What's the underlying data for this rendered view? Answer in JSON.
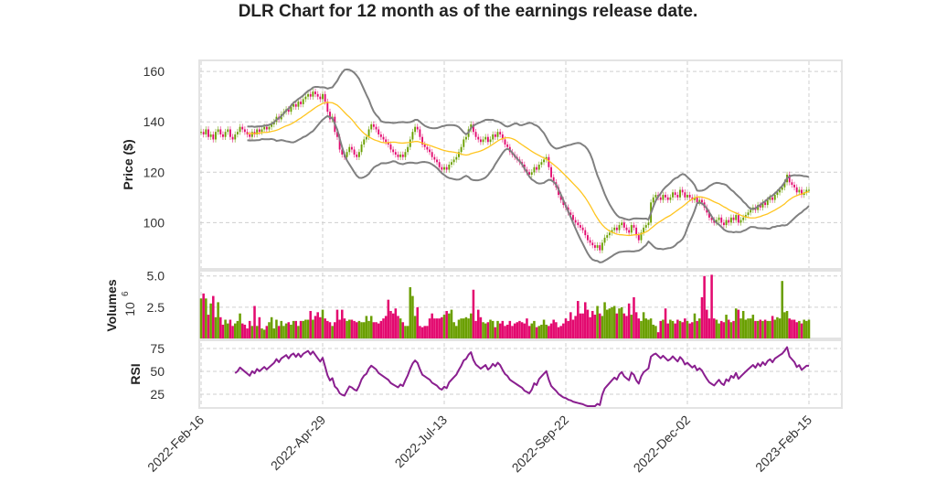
{
  "chart_data": {
    "type": "candlestick",
    "title": "DLR Chart for 12 month as of the earnings release date.",
    "x_tick_labels": [
      "2022-Feb-16",
      "2022-Apr-29",
      "2022-Jul-13",
      "2022-Sep-22",
      "2022-Dec-02",
      "2023-Feb-15"
    ],
    "x_tick_indices": [
      0,
      50,
      100,
      150,
      200,
      250
    ],
    "colors": {
      "up": "#6a9f00",
      "down": "#e3096f",
      "sma": "#ffc520",
      "bands": "#808080",
      "rsi": "#8a1f8f"
    },
    "price": {
      "ylabel": "Price ($)",
      "ylim": [
        81.6,
        164.4
      ],
      "ticks": [
        "100",
        "120",
        "140",
        "160"
      ],
      "tick_values": [
        100,
        120,
        140,
        160
      ],
      "bollinger": {
        "period": 20,
        "std": 2
      },
      "close": [
        136,
        135,
        137,
        134,
        135,
        133,
        136,
        137,
        135,
        134,
        136,
        137,
        134,
        133,
        135,
        136,
        138,
        137,
        136,
        135,
        134,
        136,
        135,
        137,
        136,
        137,
        138,
        137,
        138,
        139,
        140,
        142,
        141,
        143,
        144,
        145,
        144,
        146,
        147,
        146,
        148,
        147,
        149,
        150,
        151,
        150,
        152,
        151,
        150,
        149,
        151,
        148,
        144,
        141,
        142,
        136,
        134,
        129,
        127,
        126,
        128,
        130,
        129,
        127,
        126,
        128,
        131,
        133,
        134,
        137,
        139,
        138,
        137,
        135,
        134,
        133,
        132,
        131,
        129,
        128,
        127,
        126,
        127,
        126,
        128,
        130,
        133,
        136,
        138,
        137,
        134,
        131,
        130,
        129,
        128,
        126,
        125,
        124,
        122,
        121,
        122,
        121,
        123,
        124,
        125,
        126,
        128,
        130,
        133,
        134,
        137,
        139,
        136,
        134,
        133,
        132,
        133,
        134,
        132,
        133,
        135,
        134,
        136,
        135,
        133,
        131,
        130,
        128,
        127,
        126,
        125,
        124,
        123,
        121,
        120,
        119,
        120,
        122,
        121,
        123,
        124,
        125,
        126,
        122,
        118,
        116,
        114,
        111,
        109,
        107,
        106,
        104,
        103,
        101,
        100,
        99,
        98,
        97,
        95,
        93,
        92,
        91,
        90,
        91,
        89,
        92,
        94,
        95,
        96,
        97,
        98,
        97,
        99,
        100,
        98,
        97,
        96,
        99,
        98,
        95,
        93,
        96,
        98,
        99,
        100,
        108,
        110,
        111,
        110,
        109,
        111,
        110,
        109,
        110,
        112,
        111,
        110,
        113,
        112,
        110,
        111,
        110,
        109,
        110,
        108,
        109,
        108,
        106,
        104,
        102,
        101,
        100,
        101,
        102,
        100,
        99,
        101,
        100,
        102,
        101,
        103,
        100,
        101,
        102,
        103,
        104,
        105,
        106,
        105,
        107,
        106,
        108,
        107,
        109,
        110,
        109,
        111,
        112,
        113,
        114,
        116,
        119,
        116,
        115,
        114,
        112,
        113,
        111,
        112,
        113,
        113
      ]
    },
    "volume": {
      "ylabel": "Volumes",
      "unit_label": "10",
      "unit_exp": "6",
      "ylim": [
        0,
        5.42
      ],
      "ticks": [
        "2.5",
        "5.0"
      ],
      "tick_values": [
        2.5,
        5.0
      ],
      "values": [
        3.2,
        3.6,
        3.2,
        1.9,
        2.8,
        3.4,
        1.7,
        2.9,
        1.7,
        1.1,
        1.5,
        1.2,
        1.5,
        1.0,
        1.2,
        1.4,
        2.0,
        1.2,
        1.1,
        0.8,
        1.4,
        1.0,
        2.6,
        1.0,
        1.7,
        0.8,
        0.7,
        1.0,
        1.3,
        1.7,
        0.8,
        1.5,
        1.0,
        1.4,
        1.0,
        1.2,
        1.3,
        1.1,
        1.4,
        1.4,
        1.0,
        1.4,
        1.4,
        1.5,
        1.5,
        2.2,
        1.5,
        1.8,
        2.1,
        1.7,
        2.3,
        1.6,
        1.4,
        1.3,
        1.0,
        1.3,
        2.3,
        1.5,
        2.3,
        1.6,
        1.4,
        1.5,
        1.5,
        1.4,
        1.3,
        1.4,
        1.3,
        1.3,
        1.8,
        1.4,
        1.8,
        1.3,
        1.3,
        1.2,
        1.4,
        1.6,
        1.8,
        3.1,
        2.2,
        2.0,
        2.4,
        1.8,
        1.6,
        1.3,
        1.0,
        1.0,
        4.1,
        3.4,
        1.8,
        2.5,
        1.0,
        0.9,
        1.0,
        1.0,
        1.6,
        2.0,
        1.6,
        1.6,
        1.6,
        1.7,
        1.9,
        2.2,
        2.0,
        2.3,
        1.3,
        1.0,
        1.5,
        1.6,
        1.6,
        1.7,
        1.6,
        2.0,
        3.9,
        1.4,
        2.3,
        1.7,
        1.3,
        1.2,
        1.3,
        1.5,
        1.4,
        0.9,
        1.4,
        1.2,
        1.4,
        1.0,
        1.1,
        1.4,
        1.0,
        1.2,
        1.3,
        1.4,
        1.3,
        1.2,
        1.6,
        1.0,
        1.2,
        1.4,
        0.9,
        1.0,
        1.1,
        1.5,
        1.1,
        1.0,
        1.2,
        1.5,
        1.3,
        0.9,
        1.0,
        1.2,
        1.6,
        1.4,
        2.1,
        1.5,
        1.8,
        3.0,
        2.0,
        2.0,
        2.9,
        2.3,
        1.7,
        2.2,
        1.9,
        2.6,
        2.0,
        1.8,
        2.9,
        2.3,
        2.4,
        2.5,
        2.6,
        2.0,
        2.4,
        2.5,
        2.0,
        1.8,
        2.8,
        1.9,
        3.3,
        2.1,
        1.6,
        1.4,
        2.1,
        1.6,
        1.5,
        1.6,
        1.1,
        1.0,
        0.5,
        1.4,
        1.5,
        2.4,
        1.2,
        1.5,
        1.4,
        1.2,
        1.5,
        1.4,
        1.3,
        1.6,
        1.4,
        1.2,
        1.3,
        2.0,
        1.4,
        1.6,
        3.3,
        5.0,
        2.3,
        1.6,
        5.1,
        1.6,
        1.5,
        1.2,
        1.4,
        1.3,
        1.9,
        1.5,
        1.3,
        1.4,
        2.4,
        2.3,
        1.6,
        2.2,
        1.5,
        1.6,
        1.6,
        1.9,
        1.4,
        1.4,
        1.5,
        1.4,
        1.5,
        1.4,
        1.4,
        1.8,
        1.5,
        1.7,
        1.6,
        4.6,
        2.1,
        2.2,
        1.6,
        1.5,
        1.5,
        1.3,
        1.4,
        1.2,
        1.5,
        1.4,
        1.5
      ]
    },
    "rsi": {
      "ylabel": "RSI",
      "period": 14,
      "ylim": [
        10,
        84
      ],
      "ticks": [
        "25",
        "50",
        "75"
      ],
      "tick_values": [
        25,
        50,
        75
      ]
    }
  }
}
